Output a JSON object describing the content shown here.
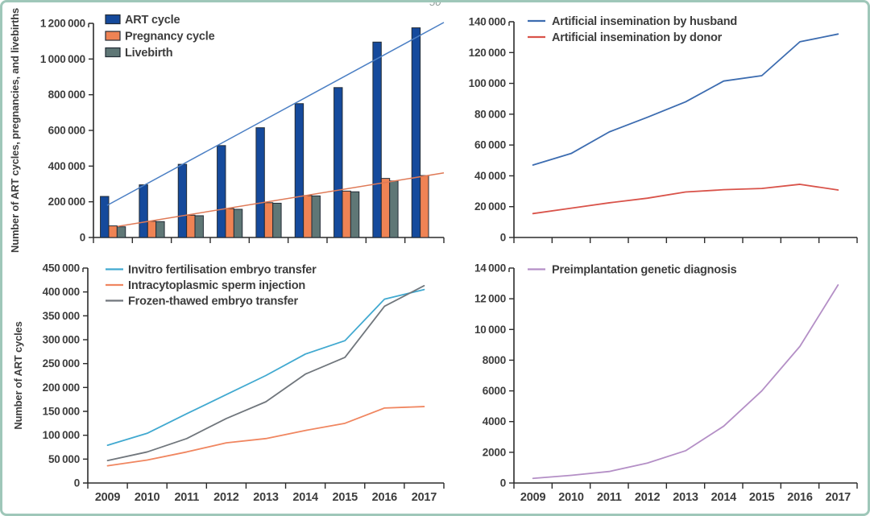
{
  "figure": {
    "background": "#ffffff",
    "border_color": "#9fc7b9",
    "axis_color": "#2b2b2b",
    "text_color": "#3d3d3d",
    "top_artifact_text": "50",
    "x_categories": [
      "2009",
      "2010",
      "2011",
      "2012",
      "2013",
      "2014",
      "2015",
      "2016",
      "2017"
    ]
  },
  "chart_data": [
    {
      "id": "art-cycles-pregnancies-livebirths",
      "position": "top-left",
      "type": "bar",
      "title": "",
      "xlabel": "",
      "ylabel": "Number of ART cycles, pregnancies, and livebirths",
      "ylim": [
        0,
        1200000
      ],
      "grid": false,
      "legend_position": "top-left-inside",
      "show_x_labels": false,
      "yticks": [
        {
          "v": 0,
          "label": "0"
        },
        {
          "v": 200000,
          "label": "200 000"
        },
        {
          "v": 400000,
          "label": "400 000"
        },
        {
          "v": 600000,
          "label": "600 000"
        },
        {
          "v": 800000,
          "label": "800 000"
        },
        {
          "v": 1000000,
          "label": "1 000 000"
        },
        {
          "v": 1200000,
          "label": "1 200 000"
        }
      ],
      "series": [
        {
          "name": "ART cycle",
          "kind": "bar",
          "color": "#154a9c",
          "values": [
            230000,
            295000,
            410000,
            515000,
            615000,
            750000,
            840000,
            1095000,
            1175000
          ]
        },
        {
          "name": "Pregnancy cycle",
          "kind": "bar",
          "color": "#ef8354",
          "values": [
            65000,
            91000,
            125000,
            162000,
            195000,
            235000,
            260000,
            331000,
            347000
          ]
        },
        {
          "name": "Livebirth",
          "kind": "bar",
          "color": "#5f7776",
          "values": [
            60000,
            89000,
            122000,
            158000,
            192000,
            233000,
            256000,
            317000,
            null
          ]
        }
      ],
      "trend_lines": [
        {
          "color": "#4b7fc4",
          "from": {
            "x": 0.35,
            "y": 180000
          },
          "to": {
            "x": 9,
            "y": 1205000
          }
        },
        {
          "color": "#df7a57",
          "from": {
            "x": 0.62,
            "y": 62000
          },
          "to": {
            "x": 9,
            "y": 362000
          }
        }
      ]
    },
    {
      "id": "artificial-insemination",
      "position": "top-right",
      "type": "line",
      "title": "",
      "xlabel": "",
      "ylabel": "",
      "ylim": [
        0,
        140000
      ],
      "grid": false,
      "legend_position": "top-left-inside",
      "show_x_labels": false,
      "yticks": [
        {
          "v": 0,
          "label": "0"
        },
        {
          "v": 20000,
          "label": "20 000"
        },
        {
          "v": 40000,
          "label": "40 000"
        },
        {
          "v": 60000,
          "label": "60 000"
        },
        {
          "v": 80000,
          "label": "80 000"
        },
        {
          "v": 100000,
          "label": "100 000"
        },
        {
          "v": 120000,
          "label": "120 000"
        },
        {
          "v": 140000,
          "label": "140 000"
        }
      ],
      "series": [
        {
          "name": "Artificial insemination by husband",
          "kind": "line",
          "color": "#3c6cb0",
          "values": [
            47000,
            54500,
            68500,
            78000,
            88000,
            101500,
            105000,
            127000,
            132000
          ]
        },
        {
          "name": "Artificial insemination by donor",
          "kind": "line",
          "color": "#d9534a",
          "values": [
            15500,
            19000,
            22500,
            25500,
            29500,
            31000,
            31800,
            34500,
            30800
          ]
        }
      ],
      "trend_lines": []
    },
    {
      "id": "art-cycle-types",
      "position": "bottom-left",
      "type": "line",
      "title": "",
      "xlabel": "",
      "ylabel": "Number of ART cycles",
      "ylim": [
        0,
        450000
      ],
      "grid": false,
      "legend_position": "top-left-inside",
      "show_x_labels": true,
      "yticks": [
        {
          "v": 0,
          "label": "0"
        },
        {
          "v": 50000,
          "label": "50 000"
        },
        {
          "v": 100000,
          "label": "100 000"
        },
        {
          "v": 150000,
          "label": "150 000"
        },
        {
          "v": 200000,
          "label": "200 000"
        },
        {
          "v": 250000,
          "label": "250 000"
        },
        {
          "v": 300000,
          "label": "300 000"
        },
        {
          "v": 350000,
          "label": "350 000"
        },
        {
          "v": 400000,
          "label": "400 000"
        },
        {
          "v": 450000,
          "label": "450 000"
        }
      ],
      "series": [
        {
          "name": "Invitro fertilisation embryo transfer",
          "kind": "line",
          "color": "#41a9d0",
          "values": [
            79000,
            104000,
            145000,
            185000,
            225000,
            270000,
            298000,
            385000,
            405000
          ]
        },
        {
          "name": "Intracytoplasmic sperm injection",
          "kind": "line",
          "color": "#f08660",
          "values": [
            36000,
            48000,
            65000,
            84000,
            93000,
            110000,
            125000,
            157000,
            160000
          ]
        },
        {
          "name": "Frozen-thawed embryo transfer",
          "kind": "line",
          "color": "#70767c",
          "values": [
            47000,
            65000,
            93000,
            135000,
            170000,
            228000,
            263000,
            370000,
            413000
          ]
        }
      ],
      "trend_lines": []
    },
    {
      "id": "preimplantation-genetic-diagnosis",
      "position": "bottom-right",
      "type": "line",
      "title": "",
      "xlabel": "",
      "ylabel": "",
      "ylim": [
        0,
        14000
      ],
      "grid": false,
      "legend_position": "top-left-inside",
      "show_x_labels": true,
      "yticks": [
        {
          "v": 0,
          "label": "0"
        },
        {
          "v": 2000,
          "label": "2000"
        },
        {
          "v": 4000,
          "label": "4000"
        },
        {
          "v": 6000,
          "label": "6000"
        },
        {
          "v": 8000,
          "label": "8000"
        },
        {
          "v": 10000,
          "label": "10 000"
        },
        {
          "v": 12000,
          "label": "12 000"
        },
        {
          "v": 14000,
          "label": "14 000"
        }
      ],
      "series": [
        {
          "name": "Preimplantation genetic diagnosis",
          "kind": "line",
          "color": "#b48fc6",
          "values": [
            300,
            500,
            750,
            1300,
            2100,
            3700,
            6000,
            8900,
            12900
          ]
        }
      ],
      "trend_lines": []
    }
  ]
}
